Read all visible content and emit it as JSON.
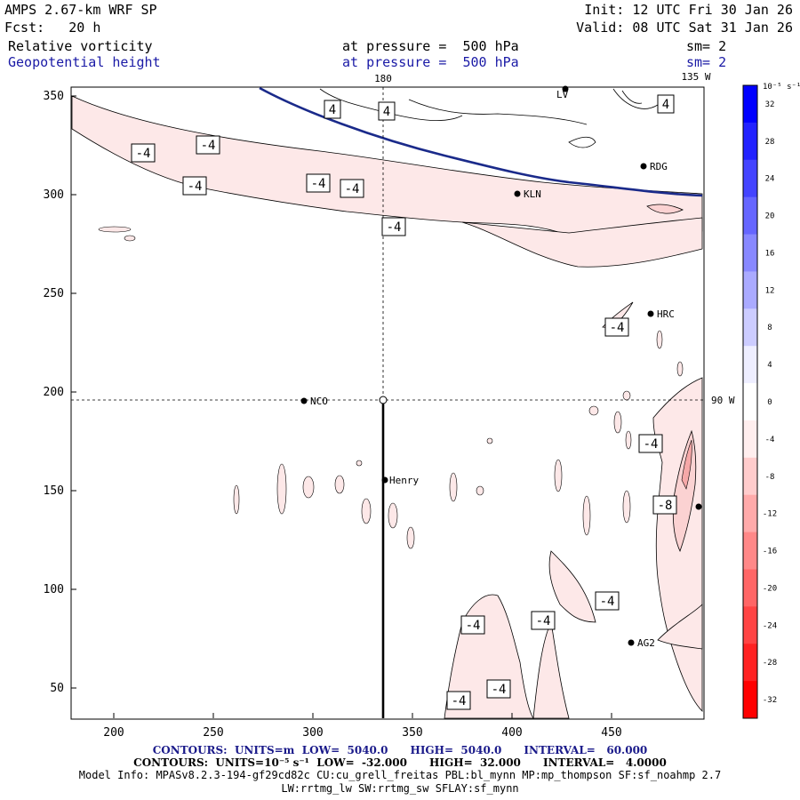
{
  "header": {
    "model": "AMPS 2.67-km WRF SP",
    "init": "Init: 12 UTC Fri 30 Jan 26",
    "fcst": "Fcst:   20 h",
    "valid": "Valid: 08 UTC Sat 31 Jan 26",
    "field1_name": "Relative vorticity",
    "field1_level": "at pressure =  500 hPa",
    "field1_sm": "sm= 2",
    "field2_name": "Geopotential height",
    "field2_level": "at pressure =  500 hPa",
    "field2_sm": "sm= 2"
  },
  "map": {
    "meridian_labels": [
      "180",
      "135 W",
      "90 W"
    ],
    "x_ticks": [
      "200",
      "250",
      "300",
      "350",
      "400",
      "450"
    ],
    "y_ticks": [
      "350",
      "300",
      "250",
      "200",
      "150",
      "100",
      "50"
    ],
    "stations": [
      "LV",
      "RDG",
      "KLN",
      "HRC",
      "NCO",
      "Henry",
      "AG2"
    ],
    "contour_labels": [
      "4",
      "4",
      "4",
      "-4",
      "-4",
      "-4",
      "-4",
      "-4",
      "-4",
      "-4",
      "-4",
      "-4",
      "-4",
      "-4",
      "-4",
      "-4",
      "-8"
    ]
  },
  "colorbar": {
    "unit": "10⁻⁵ s⁻¹",
    "labels": [
      "32",
      "28",
      "24",
      "20",
      "16",
      "12",
      "8",
      "4",
      "0",
      "-4",
      "-8",
      "-12",
      "-16",
      "-20",
      "-24",
      "-28",
      "-32"
    ],
    "colors": [
      "#0000ff",
      "#2222ff",
      "#4444ff",
      "#6666ff",
      "#8888ff",
      "#aaaaff",
      "#ccccff",
      "#eeeeff",
      "#ffffff",
      "#ffeeee",
      "#ffcccc",
      "#ffaaaa",
      "#ff8888",
      "#ff6666",
      "#ff4444",
      "#ff2222",
      "#ff0000"
    ]
  },
  "footer": {
    "line1": "CONTOURS:  UNITS=m  LOW=  5040.0      HIGH=  5040.0      INTERVAL=   60.000",
    "line2": "CONTOURS:  UNITS=10⁻⁵ s⁻¹  LOW=  -32.000      HIGH=  32.000      INTERVAL=   4.0000",
    "line3": "Model Info: MPASv8.2.3-194-gf29cd82c CU:cu_grell_freitas PBL:bl_mynn MP:mp_thompson SF:sf_noahmp 2.7",
    "line4": "LW:rrtmg_lw SW:rrtmg_sw SFLAY:sf_mynn"
  }
}
